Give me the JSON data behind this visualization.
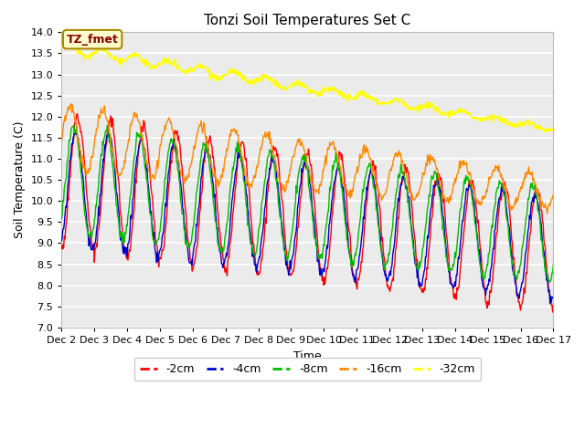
{
  "title": "Tonzi Soil Temperatures Set C",
  "xlabel": "Time",
  "ylabel": "Soil Temperature (C)",
  "ylim": [
    7.0,
    14.0
  ],
  "yticks": [
    7.0,
    7.5,
    8.0,
    8.5,
    9.0,
    9.5,
    10.0,
    10.5,
    11.0,
    11.5,
    12.0,
    12.5,
    13.0,
    13.5,
    14.0
  ],
  "xtick_labels": [
    "Dec 2",
    "Dec 3",
    "Dec 4",
    "Dec 5",
    "Dec 6",
    "Dec 7",
    "Dec 8",
    "Dec 9",
    "Dec 10",
    "Dec 11",
    "Dec 12",
    "Dec 13",
    "Dec 14",
    "Dec 15",
    "Dec 16",
    "Dec 17"
  ],
  "colors": {
    "m2cm": "#ff0000",
    "m4cm": "#0000cc",
    "m8cm": "#00bb00",
    "m16cm": "#ff8800",
    "m32cm": "#ffff00"
  },
  "legend_labels": [
    "-2cm",
    "-4cm",
    "-8cm",
    "-16cm",
    "-32cm"
  ],
  "annotation_text": "TZ_fmet",
  "annotation_color": "#880000",
  "annotation_bg": "#ffffcc",
  "annotation_border": "#aa8800",
  "plot_bg_color": "#ebebeb",
  "grid_color": "#ffffff",
  "title_fontsize": 11,
  "axis_fontsize": 8,
  "legend_fontsize": 9
}
